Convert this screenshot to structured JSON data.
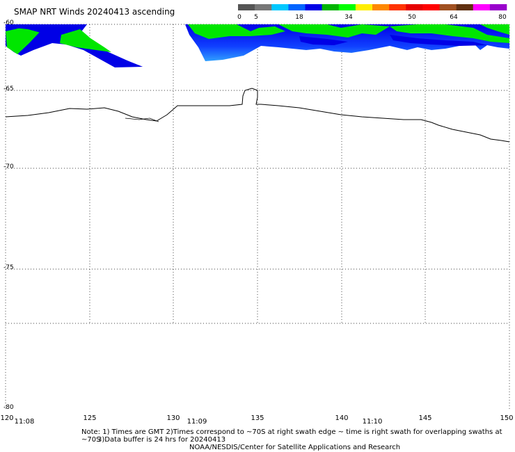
{
  "title": "SMAP NRT Winds 20240413 ascending",
  "colorbar": {
    "ticks": [
      "0",
      "5",
      "18",
      "34",
      "50",
      "64",
      "80"
    ],
    "colors": [
      "#555555",
      "#777777",
      "#00c8ff",
      "#0064ff",
      "#0000e6",
      "#00b400",
      "#00ff00",
      "#ffee00",
      "#ff8800",
      "#ff3300",
      "#e60000",
      "#ff0000",
      "#a05020",
      "#603010",
      "#ff00ff",
      "#9900cc"
    ]
  },
  "map": {
    "lat_labels": [
      "-60",
      "-65",
      "-70",
      "-75",
      "-80"
    ],
    "lon_labels": [
      "120",
      "125",
      "130",
      "135",
      "140",
      "145",
      "150"
    ],
    "time_labels": [
      "11:08",
      "11:09",
      "11:10"
    ],
    "grid_style": "dotted",
    "coastline_color": "#000000",
    "swath_colors": {
      "low": "#0000e6",
      "mid": "#0064ff",
      "high": "#00c8ff",
      "strong": "#00e600"
    }
  },
  "notes": {
    "line1": "Note: 1) Times are GMT 2)Times correspond to ~70S at right swath edge ~ time is right swath for overlapping swaths at ~70S",
    "line2": "3)Data buffer is 24 hrs for 20240413",
    "line3": "NOAA/NESDIS/Center for Satellite Applications and Research"
  }
}
